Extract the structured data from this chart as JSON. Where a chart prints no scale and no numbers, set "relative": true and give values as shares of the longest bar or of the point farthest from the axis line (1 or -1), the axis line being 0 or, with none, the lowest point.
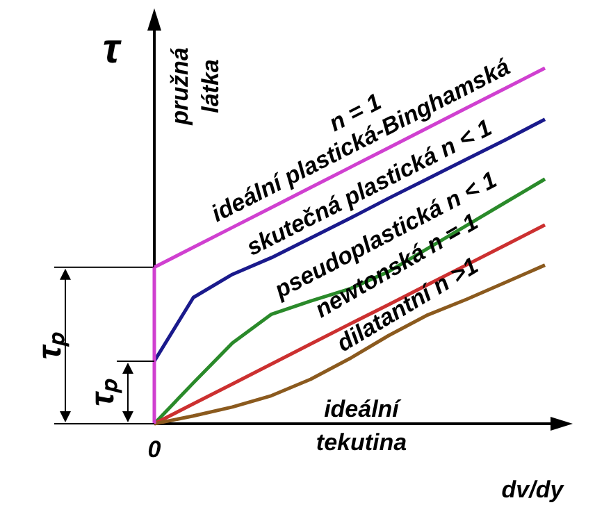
{
  "chart_data": {
    "type": "line",
    "relative": true,
    "ylabel": "τ",
    "xlabel": "dv/dy",
    "marker": "none",
    "line_style": "solid",
    "categories": [
      null,
      null,
      null,
      null,
      null,
      null,
      null,
      null,
      null,
      null,
      null
    ],
    "annotations": [
      "pružná látka",
      "ideální tekutina",
      "n = 1",
      "0",
      "τₚ",
      "τₚ"
    ],
    "series": [
      {
        "name": "ideální plastická-Binghamská",
        "color": "#d040d0",
        "values": [
          0.44,
          0.496,
          0.552,
          0.608,
          0.664,
          0.72,
          0.776,
          0.832,
          0.888,
          0.944,
          1.0
        ]
      },
      {
        "name": "skutečná plastická n < 1",
        "color": "#1a1a8c",
        "values": [
          0.176,
          0.355,
          0.42,
          0.467,
          0.522,
          0.577,
          0.634,
          0.689,
          0.744,
          0.799,
          0.856
        ]
      },
      {
        "name": "pseudoplastická n < 1",
        "color": "#2a8a2a",
        "values": [
          0,
          0.115,
          0.227,
          0.308,
          0.345,
          0.379,
          0.428,
          0.493,
          0.558,
          0.623,
          0.688
        ]
      },
      {
        "name": "newtonská n = 1",
        "color": "#cc3030",
        "values": [
          0,
          0.056,
          0.112,
          0.168,
          0.224,
          0.28,
          0.335,
          0.391,
          0.447,
          0.503,
          0.559
        ]
      },
      {
        "name": "dilatantní n >1",
        "color": "#8b5a1e",
        "values": [
          0,
          0.022,
          0.047,
          0.079,
          0.125,
          0.183,
          0.248,
          0.306,
          0.35,
          0.398,
          0.446
        ]
      }
    ]
  }
}
